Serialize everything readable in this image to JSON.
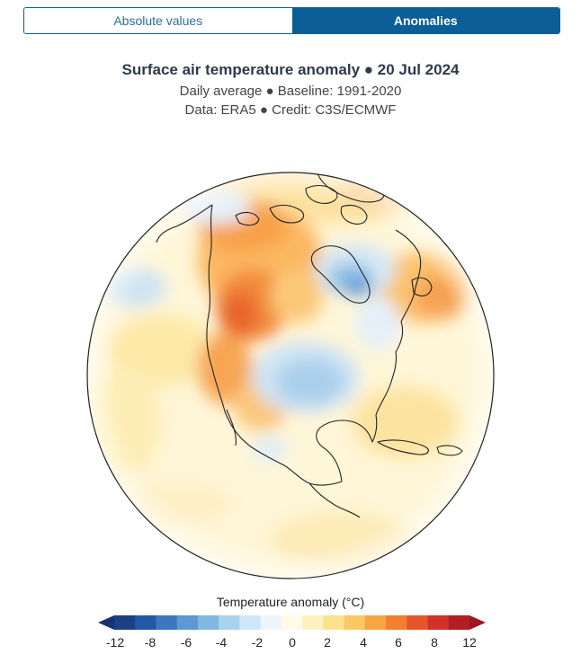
{
  "toggle": {
    "absolute_label": "Absolute values",
    "anomalies_label": "Anomalies",
    "selected": "anomalies"
  },
  "header": {
    "title": "Surface air temperature anomaly ● 20 Jul 2024",
    "subtitle_1": "Daily average ● Baseline: 1991-2020",
    "subtitle_2": "Data: ERA5 ● Credit: C3S/ECMWF"
  },
  "legend": {
    "title": "Temperature anomaly (°C)",
    "ticks": [
      "-12",
      "-8",
      "-6",
      "-4",
      "-2",
      "0",
      "2",
      "4",
      "6",
      "8",
      "12"
    ],
    "colors": [
      "#1c3f86",
      "#2558a7",
      "#3b78c0",
      "#5c98d2",
      "#82b7e2",
      "#a9d2ee",
      "#cfe6f6",
      "#eef6fc",
      "#fffbe8",
      "#fff1bf",
      "#fde28d",
      "#fbc763",
      "#f8a544",
      "#f2802f",
      "#e5572a",
      "#d2302a",
      "#b31d24"
    ],
    "extend_colors": {
      "low": "#17326e",
      "high": "#9e1620"
    }
  }
}
